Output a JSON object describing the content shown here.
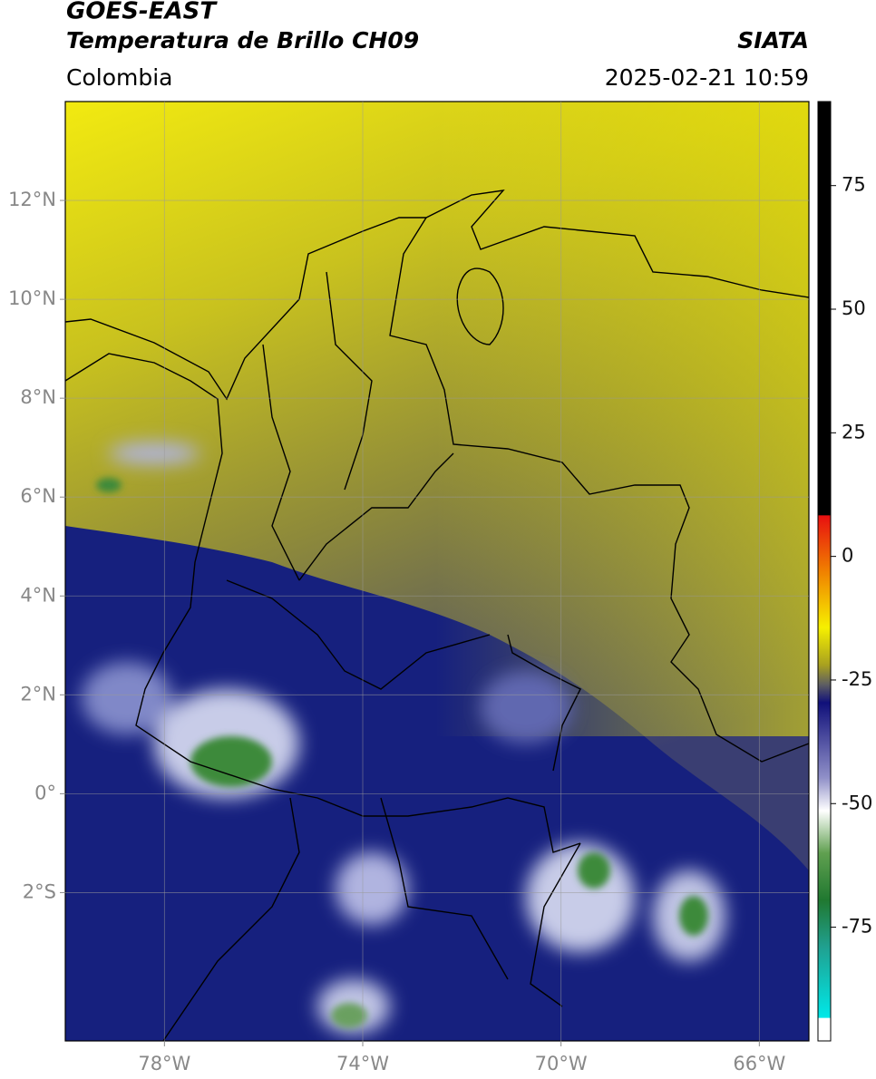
{
  "header": {
    "satellite": "GOES-EAST",
    "product": "Temperatura de Brillo CH09",
    "source": "SIATA",
    "region": "Colombia",
    "timestamp": "2025-02-21 10:59"
  },
  "map": {
    "xlim": [
      -80,
      -65
    ],
    "ylim": [
      -5,
      14
    ],
    "xticks": [
      {
        "value": -78,
        "label": "78°W"
      },
      {
        "value": -74,
        "label": "74°W"
      },
      {
        "value": -70,
        "label": "70°W"
      },
      {
        "value": -66,
        "label": "66°W"
      }
    ],
    "yticks": [
      {
        "value": -2,
        "label": "2°S"
      },
      {
        "value": 0,
        "label": "0°"
      },
      {
        "value": 2,
        "label": "2°N"
      },
      {
        "value": 4,
        "label": "4°N"
      },
      {
        "value": 6,
        "label": "6°N"
      },
      {
        "value": 8,
        "label": "8°N"
      },
      {
        "value": 10,
        "label": "10°N"
      },
      {
        "value": 12,
        "label": "12°N"
      }
    ],
    "grid": true
  },
  "colorbar": {
    "lim": [
      -98,
      92
    ],
    "ticks": [
      -75,
      -50,
      -25,
      0,
      25,
      50,
      75
    ]
  }
}
